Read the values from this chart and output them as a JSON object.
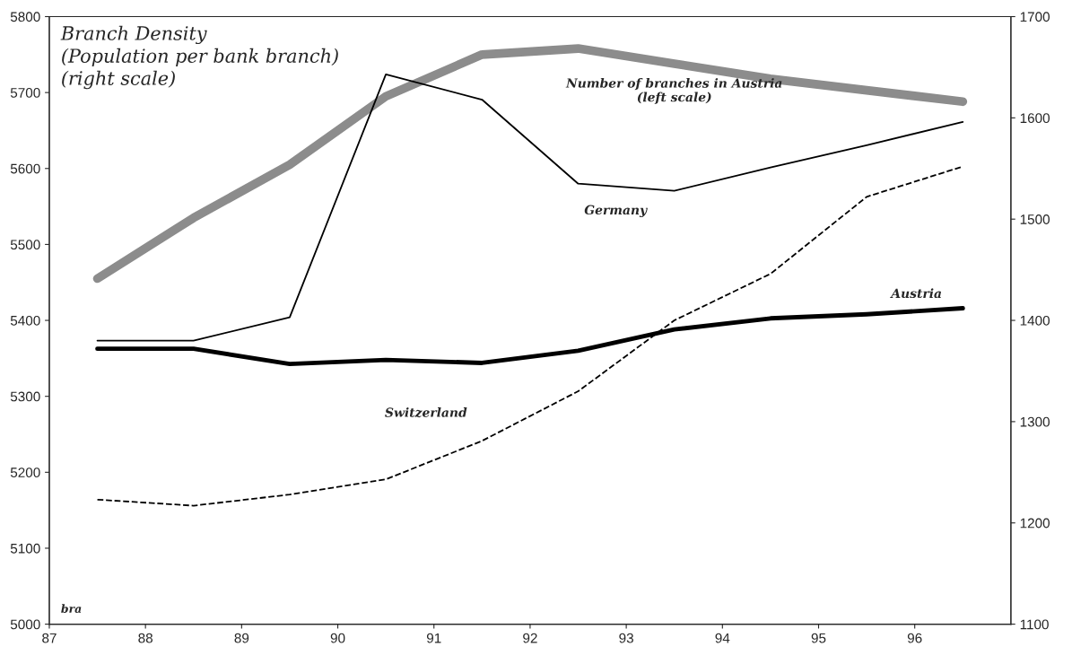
{
  "chart_data": {
    "type": "line",
    "title": "Branch Density\n(Population per bank branch)\n(right scale)",
    "x": [
      87.5,
      88.5,
      89.5,
      90.5,
      91.5,
      92.5,
      93.5,
      94.5,
      95.5,
      96.5
    ],
    "series": [
      {
        "name": "Number of branches in Austria\n(left scale)",
        "color": "#8c8c8c",
        "line_style": "solid",
        "values": [
          5455,
          5535,
          5605,
          5695,
          5750,
          5758,
          5738,
          5718,
          5703,
          5688
        ]
      },
      {
        "name": "Germany",
        "color": "#000000",
        "line_style": "solid",
        "axis": "y2",
        "values": [
          1380,
          1380,
          1403,
          1643,
          1618,
          1535,
          1528,
          1551,
          1573,
          1596
        ]
      },
      {
        "name": "Austria",
        "color": "#000000",
        "line_style": "solid",
        "axis": "y2",
        "values": [
          1372,
          1372,
          1357,
          1361,
          1358,
          1370,
          1391,
          1402,
          1406,
          1412
        ]
      },
      {
        "name": "Switzerland",
        "color": "#000000",
        "line_style": "dashed",
        "axis": "y2",
        "values": [
          1223,
          1217,
          1228,
          1243,
          1281,
          1330,
          1400,
          1446,
          1522,
          1552
        ]
      }
    ],
    "xlim": [
      87,
      97
    ],
    "xticks": [
      87,
      88,
      89,
      90,
      91,
      92,
      93,
      94,
      95,
      96
    ],
    "ylim": [
      5000,
      5800
    ],
    "yticks": [
      5000,
      5100,
      5200,
      5300,
      5400,
      5500,
      5600,
      5700,
      5800
    ],
    "y2lim": [
      1100,
      1700
    ],
    "y2ticks": [
      1100,
      1200,
      1300,
      1400,
      1500,
      1600,
      1700
    ],
    "annotations": [
      "bra"
    ],
    "grid": false,
    "legend": false,
    "marker": "none"
  }
}
